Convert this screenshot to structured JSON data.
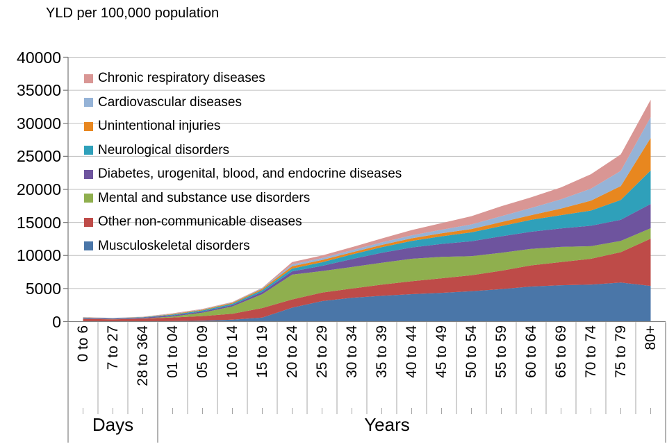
{
  "title": "YLD per 100,000 population",
  "colors": {
    "background": "#FFFFFF",
    "gridline": "#BFBFBF",
    "axis": "#808080",
    "separator": "#A6A6A6",
    "text": "#000000"
  },
  "chart_data": {
    "type": "area",
    "stacked": true,
    "title": "YLD per 100,000 population",
    "xlabel": "",
    "ylabel": "YLD per 100,000 population",
    "ylim": [
      0,
      40000
    ],
    "ytick_step": 5000,
    "yticks": [
      "0",
      "5000",
      "10000",
      "15000",
      "20000",
      "25000",
      "30000",
      "35000",
      "40000"
    ],
    "grid": true,
    "legend_position": "top-left-inside",
    "categories": [
      "0 to 6",
      "7 to 27",
      "28 to 364",
      "01 to 04",
      "05 to 09",
      "10 to 14",
      "15 to 19",
      "20 to 24",
      "25 to 29",
      "30 to 34",
      "35 to 39",
      "40 to 44",
      "45 to 49",
      "50 to 54",
      "55 to 59",
      "60 to 64",
      "65 to 69",
      "70 to 74",
      "75 to 79",
      "80+"
    ],
    "x_group_labels": [
      {
        "label": "Days",
        "start": 0,
        "end": 2
      },
      {
        "label": "Years",
        "start": 3,
        "end": 19
      }
    ],
    "series": [
      {
        "name": "Musculoskeletal disorders",
        "color": "#4A76A8",
        "values": [
          30,
          25,
          35,
          60,
          130,
          280,
          600,
          2100,
          3100,
          3600,
          3900,
          4150,
          4350,
          4600,
          4900,
          5300,
          5500,
          5600,
          5900,
          5400
        ]
      },
      {
        "name": "Other non-communicable diseases",
        "color": "#BE4B48",
        "values": [
          370,
          310,
          400,
          560,
          700,
          900,
          1450,
          1250,
          1280,
          1400,
          1700,
          1950,
          2200,
          2400,
          2800,
          3200,
          3500,
          3900,
          4600,
          7150
        ]
      },
      {
        "name": "Mental and substance use disorders",
        "color": "#8FAF4E",
        "values": [
          20,
          20,
          30,
          150,
          500,
          1100,
          2100,
          3750,
          3250,
          3250,
          3300,
          3400,
          3250,
          2900,
          2700,
          2500,
          2300,
          1900,
          1700,
          1570
        ]
      },
      {
        "name": "Diabetes, urogenital, blood, and endocrine diseases",
        "color": "#6E549E",
        "values": [
          120,
          100,
          130,
          160,
          190,
          230,
          330,
          500,
          800,
          1200,
          1500,
          1700,
          1950,
          2250,
          2500,
          2600,
          2800,
          3100,
          3200,
          3680
        ]
      },
      {
        "name": "Neurological disorders",
        "color": "#2FA0BA",
        "values": [
          60,
          50,
          60,
          120,
          170,
          200,
          290,
          420,
          550,
          700,
          850,
          1000,
          1150,
          1350,
          1550,
          1800,
          2000,
          2300,
          3000,
          5080
        ]
      },
      {
        "name": "Unintentional injuries",
        "color": "#E8871F",
        "values": [
          25,
          20,
          30,
          80,
          110,
          130,
          200,
          350,
          330,
          330,
          350,
          400,
          450,
          500,
          600,
          700,
          1000,
          1500,
          2100,
          4900
        ]
      },
      {
        "name": "Cardiovascular diseases",
        "color": "#95B3D7",
        "values": [
          30,
          25,
          30,
          50,
          60,
          70,
          90,
          280,
          300,
          320,
          380,
          450,
          550,
          700,
          900,
          1100,
          1400,
          1800,
          2300,
          3150
        ]
      },
      {
        "name": "Chronic respiratory diseases",
        "color": "#D99694",
        "values": [
          20,
          10,
          20,
          70,
          60,
          50,
          60,
          350,
          400,
          450,
          600,
          800,
          1000,
          1250,
          1500,
          1600,
          1800,
          2200,
          2500,
          2630
        ]
      }
    ],
    "legend_order_top_to_bottom": [
      7,
      6,
      5,
      4,
      3,
      2,
      1,
      0
    ]
  }
}
